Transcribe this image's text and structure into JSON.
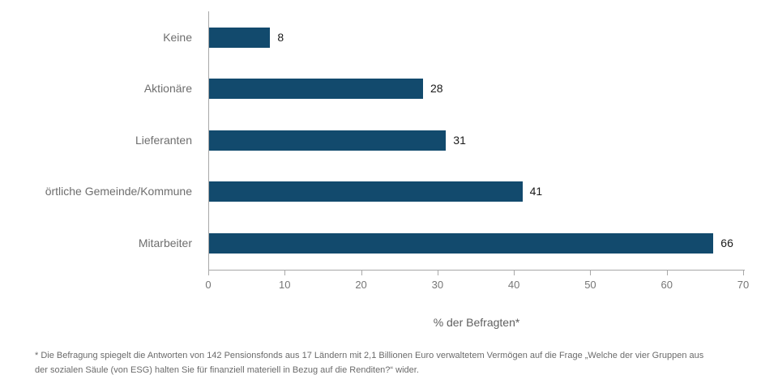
{
  "chart_data": {
    "type": "bar",
    "orientation": "horizontal",
    "title": "",
    "categories": [
      "Keine",
      "Aktionäre",
      "Lieferanten",
      "örtliche Gemeinde/Kommune",
      "Mitarbeiter"
    ],
    "values": [
      8,
      28,
      31,
      41,
      66
    ],
    "xlabel": "% der Befragten*",
    "ylabel": "",
    "xlim": [
      0,
      70
    ],
    "xticks": [
      0,
      10,
      20,
      30,
      40,
      50,
      60,
      70
    ],
    "grid": false,
    "legend": "none",
    "bar_color": "#124a6d",
    "axis_color": "#a8a8a8",
    "category_label_color": "#6e6e6e",
    "tick_label_color": "#767676",
    "value_label_color": "#1a1a1a"
  },
  "footnote": {
    "line1": "* Die Befragung spiegelt die Antworten von 142 Pensionsfonds aus 17 Ländern mit 2,1 Billionen Euro verwaltetem Vermögen auf die Frage „Welche der vier Gruppen aus",
    "line2": "der sozialen Säule (von ESG) halten Sie für finanziell materiell in Bezug auf die Renditen?“ wider."
  }
}
